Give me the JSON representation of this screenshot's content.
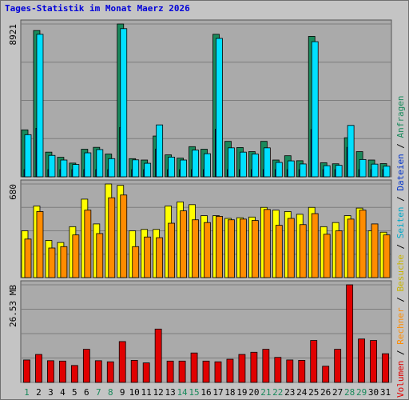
{
  "title": "Tages-Statistik im Monat Maerz 2026",
  "legend": {
    "anfragen": "Anfragen",
    "dateien": "Dateien",
    "seiten": "Seiten",
    "besuche": "Besuche",
    "rechner": "Rechner",
    "volumen": "Volumen",
    "separator": "/"
  },
  "colors": {
    "background": "#c4c4c4",
    "plot_background": "#aaaaaa",
    "anfragen": "#1a8a5c",
    "dateien": "#0033cc",
    "seiten": "#00e0ff",
    "besuche": "#ffff00",
    "rechner": "#ff8c00",
    "volumen": "#e00000",
    "title": "#0000d9",
    "day_normal": "#000000",
    "day_weekend": "#1a8a5c"
  },
  "chart_data": [
    {
      "type": "bar",
      "name": "hits",
      "ylabel": "8921",
      "ymax": 8921,
      "categories": [
        "1",
        "2",
        "3",
        "4",
        "5",
        "6",
        "7",
        "8",
        "9",
        "10",
        "11",
        "12",
        "13",
        "14",
        "15",
        "16",
        "17",
        "18",
        "19",
        "20",
        "21",
        "22",
        "23",
        "24",
        "25",
        "26",
        "27",
        "28",
        "29",
        "30",
        "31"
      ],
      "series": [
        {
          "key": "anfragen",
          "values": [
            2740,
            8540,
            1440,
            1140,
            800,
            1610,
            1720,
            1330,
            8921,
            1060,
            980,
            2380,
            1280,
            1090,
            1760,
            1610,
            8320,
            2070,
            1710,
            1470,
            2070,
            980,
            1230,
            940,
            8200,
            820,
            760,
            2280,
            1470,
            980,
            770
          ]
        },
        {
          "key": "dateien",
          "values": [
            420,
            2830,
            420,
            420,
            420,
            420,
            420,
            420,
            2880,
            420,
            420,
            1620,
            420,
            420,
            420,
            420,
            2780,
            420,
            420,
            420,
            420,
            420,
            420,
            420,
            2760,
            420,
            420,
            1720,
            420,
            420,
            420
          ]
        },
        {
          "key": "seiten",
          "values": [
            2460,
            8320,
            1250,
            980,
            720,
            1400,
            1590,
            1060,
            8650,
            990,
            790,
            3030,
            1150,
            980,
            1560,
            1350,
            8080,
            1690,
            1440,
            1330,
            1690,
            840,
            930,
            750,
            7890,
            650,
            670,
            3000,
            1010,
            740,
            620
          ]
        }
      ]
    },
    {
      "type": "bar",
      "name": "visits",
      "ylabel": "680",
      "ymax": 680,
      "series": [
        {
          "key": "besuche",
          "values": [
            340,
            520,
            270,
            255,
            370,
            570,
            390,
            680,
            670,
            340,
            350,
            350,
            520,
            550,
            530,
            450,
            450,
            430,
            435,
            440,
            510,
            490,
            480,
            460,
            510,
            370,
            400,
            450,
            505,
            340,
            330
          ]
        },
        {
          "key": "rechner",
          "values": [
            280,
            480,
            215,
            225,
            310,
            490,
            320,
            580,
            600,
            225,
            295,
            290,
            395,
            485,
            420,
            400,
            445,
            420,
            425,
            415,
            495,
            380,
            430,
            385,
            465,
            315,
            340,
            425,
            490,
            390,
            310
          ]
        }
      ]
    },
    {
      "type": "bar",
      "name": "volume",
      "ylabel": "26.53 MB",
      "ymax": 26.53,
      "series": [
        {
          "key": "volumen",
          "values": [
            6.1,
            7.6,
            5.9,
            5.8,
            4.6,
            9.0,
            5.9,
            5.6,
            11.1,
            6.0,
            5.3,
            14.5,
            5.8,
            5.8,
            8.0,
            5.8,
            5.6,
            6.3,
            7.6,
            8.2,
            9.0,
            6.8,
            6.1,
            6.0,
            11.4,
            4.4,
            9.0,
            26.53,
            11.8,
            11.4,
            7.8
          ]
        }
      ]
    }
  ],
  "weekend_days": [
    "1",
    "7",
    "8",
    "14",
    "15",
    "21",
    "22",
    "28",
    "29"
  ]
}
